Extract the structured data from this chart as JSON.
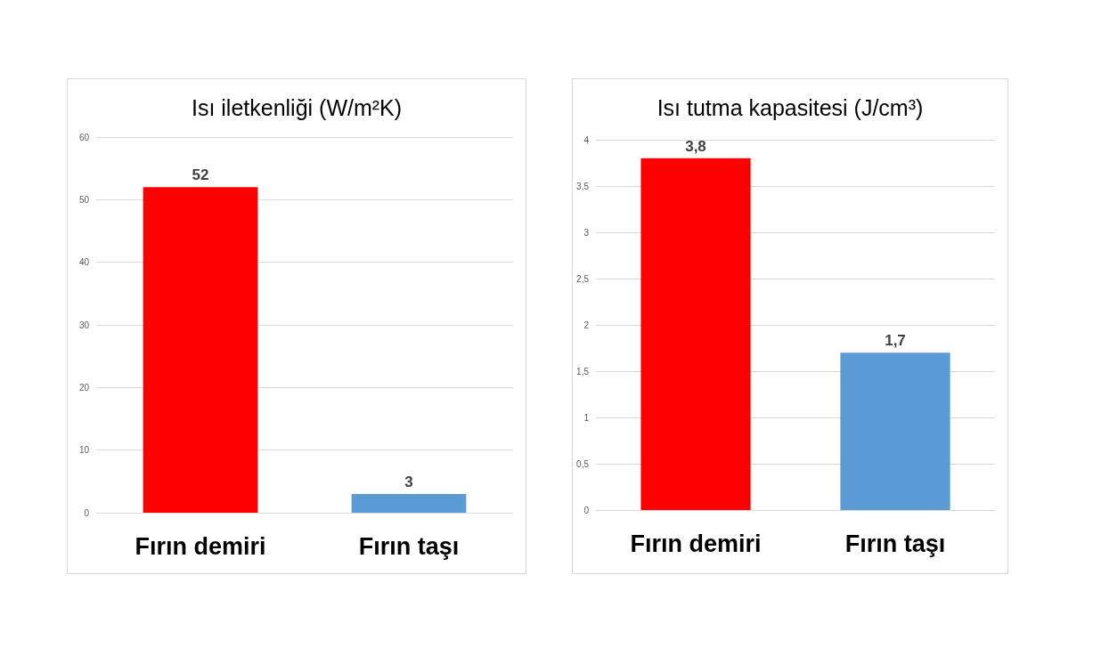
{
  "chart_data": [
    {
      "type": "bar",
      "title": "Isı iletkenliği (W/m²K)",
      "categories": [
        "Fırın demiri",
        "Fırın taşı"
      ],
      "values": [
        52,
        3
      ],
      "colors": [
        "#ff0000",
        "#5b9bd5"
      ],
      "ylim": [
        0,
        60
      ],
      "yticks": [
        0,
        10,
        20,
        30,
        40,
        50,
        60
      ],
      "grid": "y",
      "data_labels": true
    },
    {
      "type": "bar",
      "title": "Isı tutma kapasitesi (J/cm³)",
      "categories": [
        "Fırın demiri",
        "Fırın taşı"
      ],
      "values": [
        3.8,
        1.7
      ],
      "value_labels": [
        "3,8",
        "1,7"
      ],
      "colors": [
        "#ff0000",
        "#5b9bd5"
      ],
      "ylim": [
        0,
        4
      ],
      "yticks": [
        0,
        {
          "value": 0.5,
          "label": "0,5"
        },
        1,
        {
          "value": 1.5,
          "label": "1,5"
        },
        2,
        {
          "value": 2.5,
          "label": "2,5"
        },
        3,
        {
          "value": 3.5,
          "label": "3,5"
        },
        4
      ],
      "grid": "y"
    }
  ]
}
